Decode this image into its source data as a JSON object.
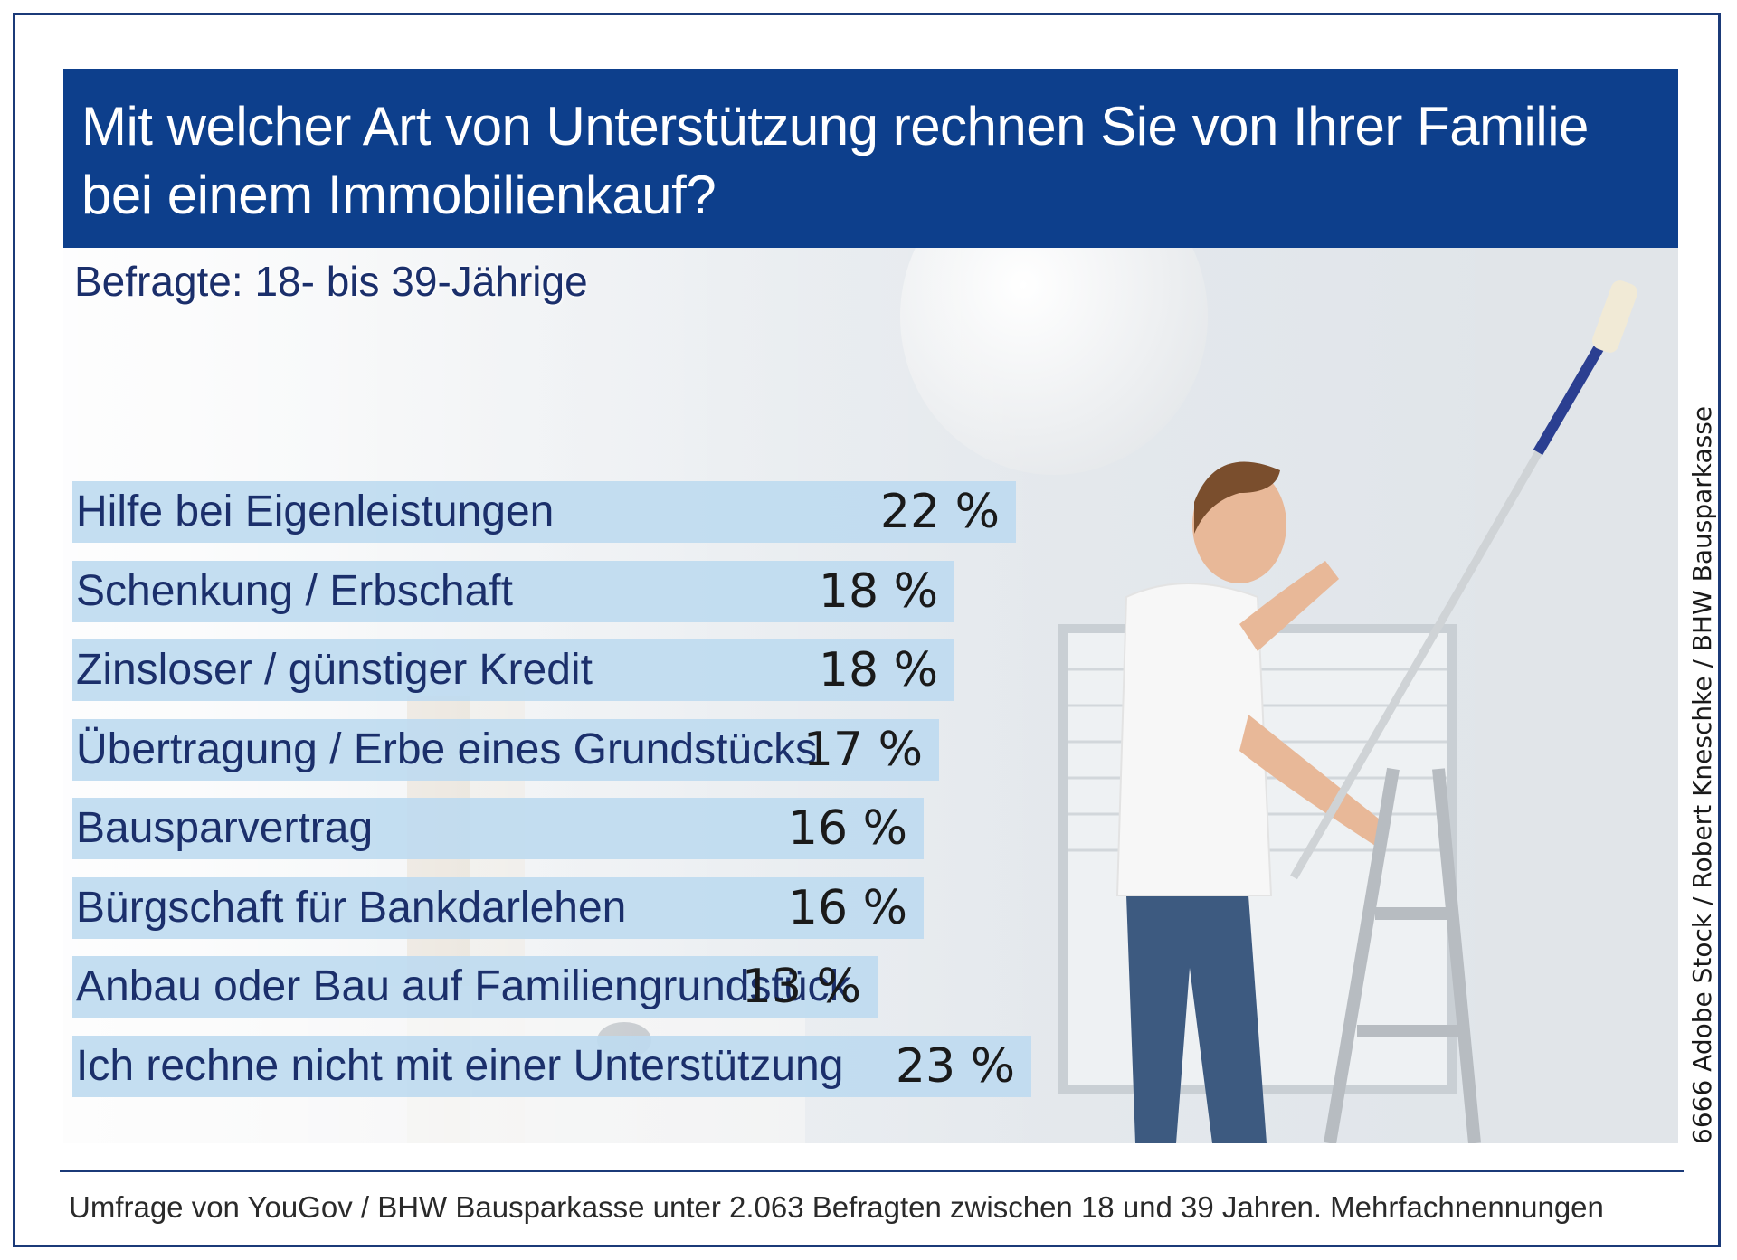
{
  "title": "Mit welcher Art von Unterstützung rechnen Sie von Ihrer Familie bei einem Immobilienkauf?",
  "subtitle": "Befragte: 18- bis 39-Jährige",
  "credit": "6666 Adobe Stock / Robert Kneschke / BHW Bausparkasse",
  "footer": "Umfrage von YouGov / BHW Bausparkasse unter 2.063 Befragten zwischen 18 und 39 Jahren. Mehrfachnennungen",
  "colors": {
    "title_bg": "#0d3f8c",
    "bar_fill": "#bedaf0",
    "label_text": "#1b2f6b",
    "border": "#1b3a78"
  },
  "chart_data": {
    "type": "bar",
    "orientation": "horizontal",
    "unit": "%",
    "categories": [
      "Hilfe bei Eigenleistungen",
      "Schenkung / Erbschaft",
      "Zinsloser / günstiger Kredit",
      "Übertragung / Erbe eines Grundstücks",
      "Bausparvertrag",
      "Bürgschaft für Bankdarlehen",
      "Anbau oder Bau auf Familiengrundstück",
      "Ich rechne nicht mit einer Unterstützung"
    ],
    "values": [
      22,
      18,
      18,
      17,
      16,
      16,
      13,
      23
    ],
    "value_labels": [
      "22 %",
      "18 %",
      "18 %",
      "17 %",
      "16 %",
      "16 %",
      "13 %",
      "23 %"
    ],
    "grid": false,
    "legend": "none"
  }
}
